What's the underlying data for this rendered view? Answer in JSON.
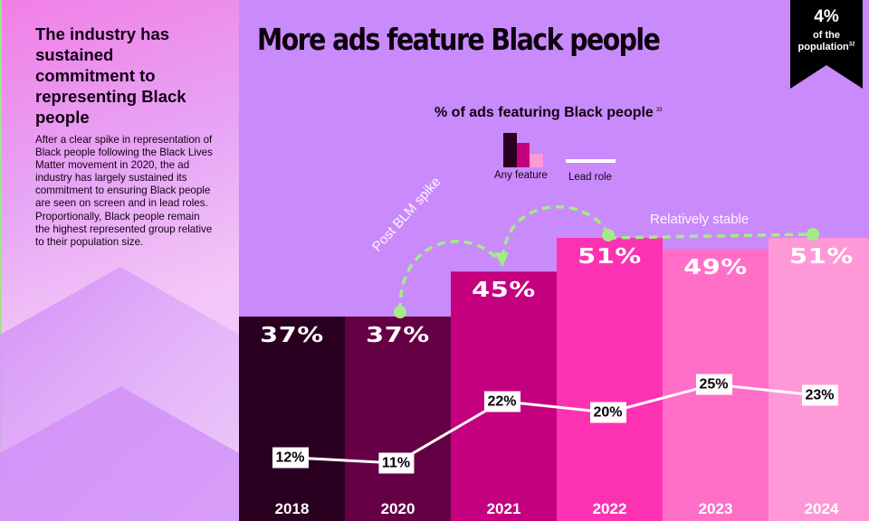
{
  "sidebar": {
    "title": "The industry has sustained commitment to representing Black people",
    "body": "After a clear spike in representation of Black people following the Black Lives Matter movement in 2020, the ad industry has largely sustained its commitment to ensuring Black people are seen on screen and in lead roles. Proportionally, Black people remain the highest represented group relative to their population size."
  },
  "header": {
    "title": "More ads feature Black people"
  },
  "banner": {
    "value": "4%",
    "line1": "of the",
    "line2": "population",
    "footnote": "32"
  },
  "chart_data": {
    "type": "bar",
    "title": "% of ads featuring Black people",
    "title_footnote": "33",
    "categories": [
      "2018",
      "2020",
      "2021",
      "2022",
      "2023",
      "2024"
    ],
    "series": [
      {
        "name": "Any feature",
        "type": "bar",
        "values": [
          37,
          37,
          45,
          51,
          49,
          51
        ],
        "labels": [
          "37%",
          "37%",
          "45%",
          "51%",
          "49%",
          "51%"
        ],
        "colors": [
          "#2a0020",
          "#650045",
          "#c5007e",
          "#fc32b3",
          "#ff6ec7",
          "#ff98d6"
        ]
      },
      {
        "name": "Lead role",
        "type": "line",
        "values": [
          12,
          11,
          22,
          20,
          25,
          23
        ],
        "labels": [
          "12%",
          "11%",
          "22%",
          "20%",
          "25%",
          "23%"
        ],
        "color": "#ffffff"
      }
    ],
    "legend": [
      "Any feature",
      "Lead role"
    ],
    "legend_position": "top-center",
    "annotations": [
      {
        "text": "Post BLM spike",
        "from": "2020",
        "to": "2021"
      },
      {
        "text": "Relatively stable",
        "from": "2022",
        "to": "2024"
      }
    ],
    "annotation_color": "#a3ec86",
    "xlabel": "",
    "ylabel": "",
    "ylim": [
      0,
      60
    ],
    "grid": false
  }
}
